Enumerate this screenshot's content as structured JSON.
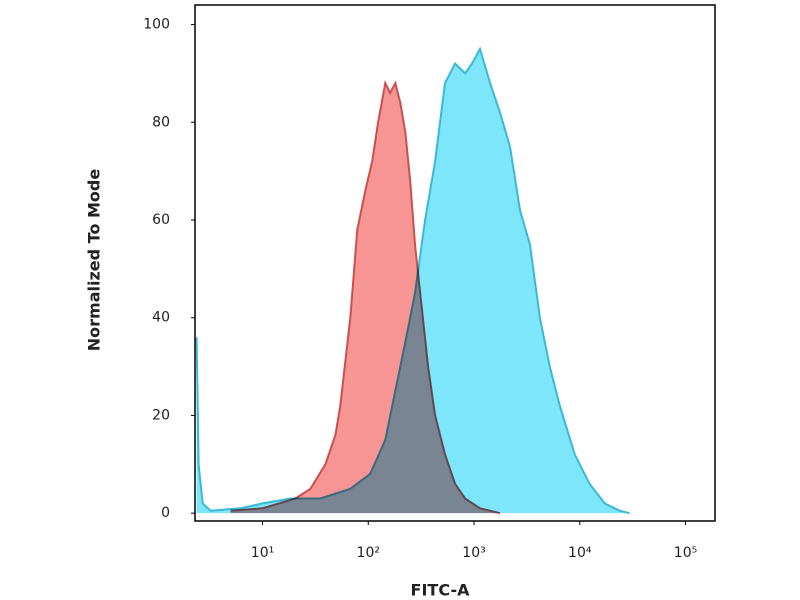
{
  "chart_data": {
    "type": "area",
    "y_label": "Normalized To Mode",
    "x_label": "FITC-A",
    "x_scale": "log",
    "xlim": [
      2.3,
      190000
    ],
    "ylim": [
      -1.6,
      104
    ],
    "xticks": [
      {
        "value": 10,
        "label": "10¹"
      },
      {
        "value": 100,
        "label": "10²"
      },
      {
        "value": 1000,
        "label": "10³"
      },
      {
        "value": 10000,
        "label": "10⁴"
      },
      {
        "value": 100000,
        "label": "10⁵"
      }
    ],
    "yticks": [
      0,
      20,
      40,
      60,
      80,
      100
    ],
    "series": [
      {
        "color": "#3bb8d6",
        "fill": "#7de6fb",
        "x": [
          2.38,
          2.49,
          2.72,
          3.23,
          6.2,
          10,
          18.4,
          35.2,
          67.7,
          104,
          145,
          180,
          224,
          277,
          345,
          429,
          532,
          662,
          823,
          957,
          1140,
          1420,
          1760,
          2190,
          2720,
          3380,
          4200,
          5210,
          6480,
          8970,
          12400,
          17200,
          23800,
          29600
        ],
        "values": [
          36,
          10,
          2,
          0.5,
          1,
          2,
          3,
          3,
          5,
          8,
          15,
          25,
          35,
          45,
          60,
          72,
          88,
          92,
          90,
          92,
          95,
          88,
          82,
          75,
          62,
          55,
          40,
          30,
          22,
          12,
          6,
          2,
          0.5,
          0
        ]
      },
      {
        "color": "#c8504f",
        "fill": "#f79494",
        "x": [
          5,
          10,
          20.5,
          28.4,
          39.3,
          48.9,
          54.4,
          67.7,
          78.7,
          93.7,
          109,
          124,
          145,
          161,
          180,
          201,
          224,
          249,
          277,
          310,
          368,
          429,
          532,
          662,
          823,
          1140,
          1760
        ],
        "values": [
          0.5,
          1,
          3,
          5,
          10,
          16,
          22,
          40,
          58,
          66,
          72,
          80,
          88,
          86,
          88,
          84,
          78,
          68,
          55,
          45,
          30,
          20,
          12,
          6,
          3,
          1,
          0
        ]
      }
    ]
  }
}
